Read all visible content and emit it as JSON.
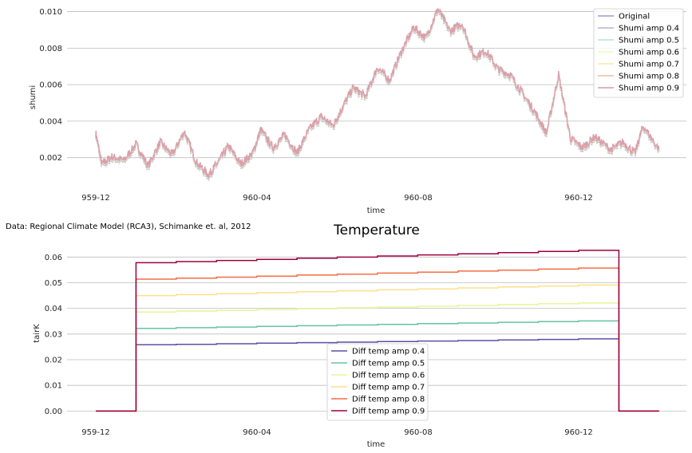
{
  "source_note": "Data: Regional Climate Model (RCA3), Schimanke et. al, 2012",
  "chart_data": [
    {
      "type": "line",
      "title": "",
      "xlabel": "time",
      "ylabel": "shumi",
      "x_ticks": [
        "959-12",
        "960-04",
        "960-08",
        "960-12"
      ],
      "y_ticks": [
        "0.002",
        "0.004",
        "0.006",
        "0.008",
        "0.010"
      ],
      "ylim": [
        0.0005,
        0.0102
      ],
      "xlim": [
        "959-11-25",
        "960-02-19"
      ],
      "grid": "horizontal",
      "legend_position": "top-right",
      "series": [
        {
          "name": "Original",
          "color": "#9c9cd6"
        },
        {
          "name": "Shumi amp 0.4",
          "color": "#b7b0d2"
        },
        {
          "name": "Shumi amp 0.5",
          "color": "#b9e3d9"
        },
        {
          "name": "Shumi amp 0.6",
          "color": "#f1f7c4"
        },
        {
          "name": "Shumi amp 0.7",
          "color": "#fbe6a8"
        },
        {
          "name": "Shumi amp 0.8",
          "color": "#f6b9a4"
        },
        {
          "name": "Shumi amp 0.9",
          "color": "#d29aae"
        }
      ],
      "approx_values": {
        "x_month_offset": [
          0,
          0.15,
          0.4,
          0.7,
          1.0,
          1.3,
          1.6,
          1.9,
          2.2,
          2.5,
          2.8,
          3.0,
          3.3,
          3.6,
          3.9,
          4.1,
          4.4,
          4.7,
          5.0,
          5.3,
          5.6,
          5.9,
          6.1,
          6.4,
          6.7,
          7.0,
          7.3,
          7.6,
          7.9,
          8.2,
          8.5,
          8.8,
          9.1,
          9.4,
          9.7,
          10.0,
          10.3,
          10.6,
          10.9,
          11.2,
          11.5,
          11.8,
          12.1,
          12.4,
          12.8,
          13.1,
          13.4,
          13.6,
          14.0
        ],
        "y": [
          0.0033,
          0.0016,
          0.002,
          0.0018,
          0.0027,
          0.0015,
          0.0028,
          0.0021,
          0.0034,
          0.0017,
          0.001,
          0.0016,
          0.0026,
          0.0016,
          0.0022,
          0.0035,
          0.0025,
          0.0032,
          0.0022,
          0.0035,
          0.0042,
          0.0037,
          0.0046,
          0.0058,
          0.0053,
          0.0069,
          0.0062,
          0.0078,
          0.0091,
          0.0085,
          0.0101,
          0.0089,
          0.0093,
          0.0075,
          0.0078,
          0.0068,
          0.0065,
          0.0055,
          0.0045,
          0.0033,
          0.0065,
          0.003,
          0.0025,
          0.0031,
          0.0024,
          0.0028,
          0.0022,
          0.0037,
          0.0024
        ]
      }
    },
    {
      "type": "line",
      "title": "Temperature",
      "xlabel": "time",
      "ylabel": "tairK",
      "x_ticks": [
        "959-12",
        "960-04",
        "960-08",
        "960-12"
      ],
      "y_ticks": [
        "0.00",
        "0.01",
        "0.02",
        "0.03",
        "0.04",
        "0.05",
        "0.06"
      ],
      "ylim": [
        -0.003,
        0.066
      ],
      "grid": "horizontal",
      "legend_position": "lower center",
      "step_start_month_offset": 1.0,
      "step_end_month_offset": 13.0,
      "x_end_month_offset": 14.0,
      "series": [
        {
          "name": "Diff temp amp 0.4",
          "color": "#5e4fa2",
          "start": 0.0258,
          "end": 0.0281
        },
        {
          "name": "Diff temp amp 0.5",
          "color": "#66c2a5",
          "start": 0.0322,
          "end": 0.0351
        },
        {
          "name": "Diff temp amp 0.6",
          "color": "#e6f598",
          "start": 0.0386,
          "end": 0.0421
        },
        {
          "name": "Diff temp amp 0.7",
          "color": "#fee08b",
          "start": 0.045,
          "end": 0.0491
        },
        {
          "name": "Diff temp amp 0.8",
          "color": "#f46d43",
          "start": 0.0514,
          "end": 0.0557
        },
        {
          "name": "Diff temp amp 0.9",
          "color": "#9e0142",
          "start": 0.0578,
          "end": 0.0626
        }
      ]
    }
  ]
}
